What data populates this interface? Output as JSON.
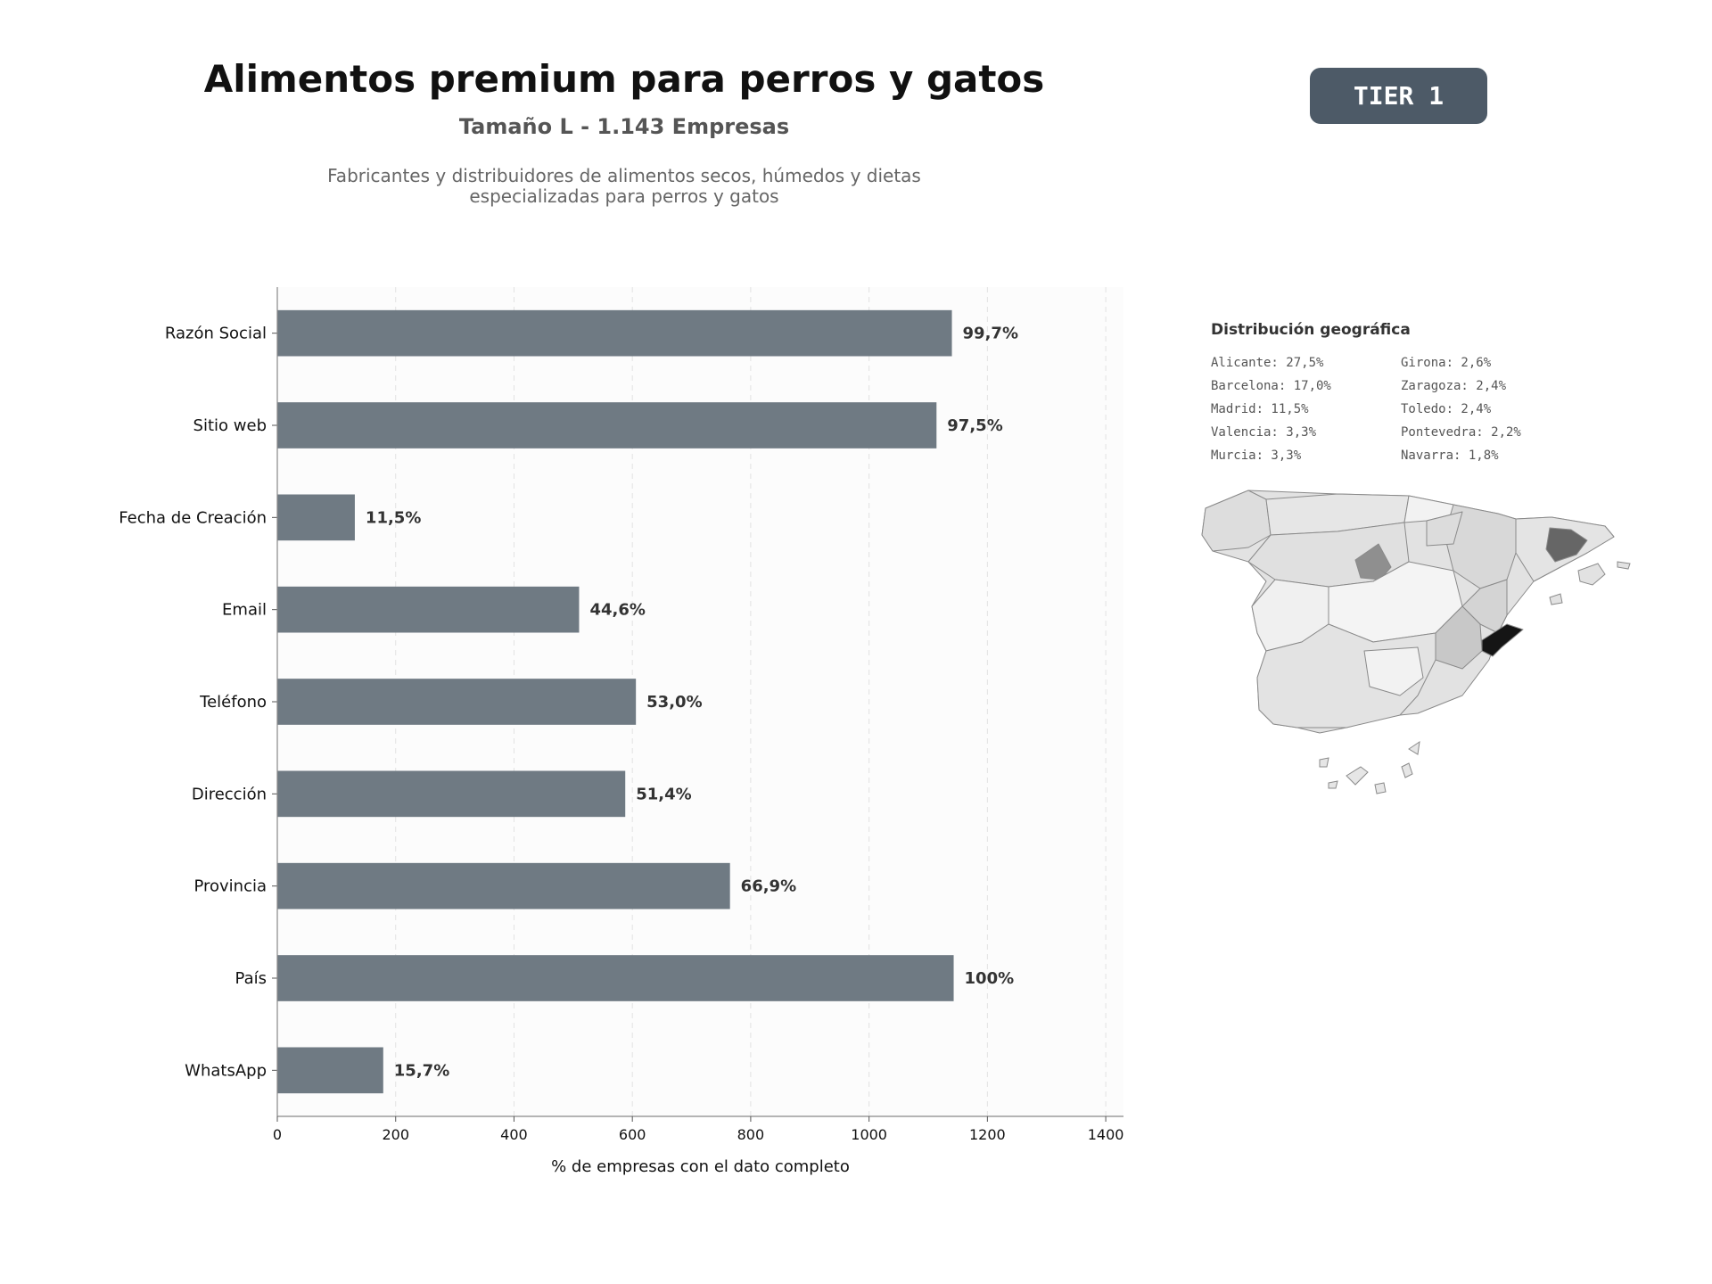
{
  "header": {
    "title": "Alimentos premium para perros y gatos",
    "subtitle": "Tamaño L - 1.143 Empresas",
    "description_line1": "Fabricantes y distribuidores de alimentos secos, húmedos y dietas",
    "description_line2": "especializadas para perros y gatos",
    "tier_label": "TIER 1",
    "tier_color": "#4d5a67"
  },
  "chart_data": {
    "type": "bar",
    "orientation": "horizontal",
    "categories": [
      "Razón Social",
      "Sitio web",
      "Fecha de Creación",
      "Email",
      "Teléfono",
      "Dirección",
      "Provincia",
      "País",
      "WhatsApp"
    ],
    "values": [
      1140,
      1114,
      131,
      510,
      606,
      588,
      765,
      1143,
      179
    ],
    "data_labels": [
      "99,7%",
      "97,5%",
      "11,5%",
      "44,6%",
      "53,0%",
      "51,4%",
      "66,9%",
      "100%",
      "15,7%"
    ],
    "xlabel": "% de empresas con el dato completo",
    "xlim": [
      0,
      1430
    ],
    "xticks": [
      0,
      200,
      400,
      600,
      800,
      1000,
      1200,
      1400
    ],
    "grid": "vertical-dashed",
    "bar_color": "#6f7a83"
  },
  "geo": {
    "title": "Distribución geográfica",
    "items": [
      "Alicante: 27,5%",
      "Girona: 2,6%",
      "Barcelona: 17,0%",
      "Zaragoza: 2,4%",
      "Madrid: 11,5%",
      "Toledo: 2,4%",
      "Valencia: 3,3%",
      "Pontevedra: 2,2%",
      "Murcia: 3,3%",
      "Navarra: 1,8%"
    ]
  }
}
